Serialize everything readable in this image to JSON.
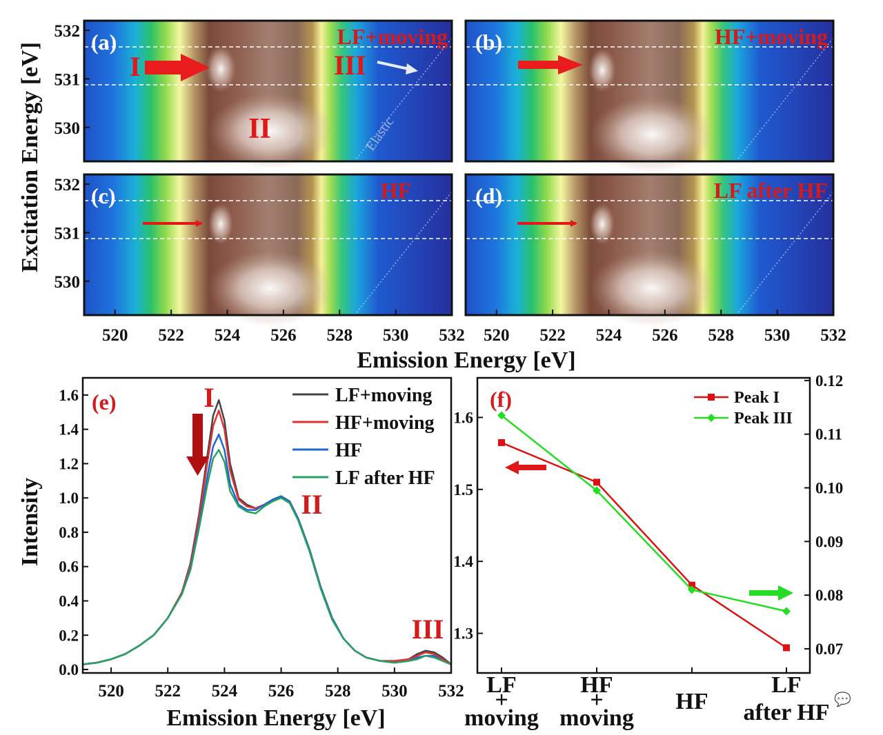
{
  "colors": {
    "series": [
      "#444444",
      "#e03030",
      "#1e66d0",
      "#2aa060"
    ],
    "peak_i": "#dd1111",
    "peak_iii": "#22dd22",
    "label_red": "#d41a1a"
  },
  "maps": {
    "ylabel": "Excitation Energy [eV]",
    "xlabel": "Emission Energy [eV]",
    "x_ticks": [
      "520",
      "522",
      "524",
      "526",
      "528",
      "530",
      "532"
    ],
    "y_ticks": [
      "532",
      "531",
      "530"
    ],
    "xlim": [
      518.9,
      532
    ],
    "ylim": [
      529.3,
      532.2
    ],
    "dashed_lines_eV": [
      531.75,
      530.9
    ],
    "panels": [
      {
        "letter": "(a)",
        "condition": "LF+moving"
      },
      {
        "letter": "(b)",
        "condition": "HF+moving"
      },
      {
        "letter": "(c)",
        "condition": "HF"
      },
      {
        "letter": "(d)",
        "condition": "LF after HF"
      }
    ],
    "feature_labels": {
      "peak_i": "I",
      "peak_ii": "II",
      "peak_iii": "III",
      "elastic": "Elastic"
    }
  },
  "chart_data": [
    {
      "type": "line",
      "panel": "(e)",
      "xlabel": "Emission Energy [eV]",
      "ylabel": "Intensity",
      "xlim": [
        519,
        532
      ],
      "ylim": [
        -0.02,
        1.7
      ],
      "x_ticks": [
        "520",
        "522",
        "524",
        "526",
        "528",
        "530",
        "532"
      ],
      "y_ticks": [
        "0.0",
        "0.2",
        "0.4",
        "0.6",
        "0.8",
        "1.0",
        "1.2",
        "1.4",
        "1.6"
      ],
      "x": [
        519.0,
        519.5,
        520.0,
        520.5,
        521.0,
        521.5,
        522.0,
        522.5,
        522.8,
        523.1,
        523.4,
        523.6,
        523.8,
        524.0,
        524.2,
        524.5,
        524.8,
        525.1,
        525.4,
        525.7,
        526.0,
        526.3,
        526.6,
        527.0,
        527.4,
        527.8,
        528.2,
        528.6,
        529.0,
        529.5,
        530.0,
        530.5,
        530.8,
        531.1,
        531.4,
        531.7,
        532.0
      ],
      "series": [
        {
          "name": "LF+moving",
          "values": [
            0.03,
            0.04,
            0.06,
            0.09,
            0.14,
            0.2,
            0.3,
            0.45,
            0.62,
            0.9,
            1.25,
            1.48,
            1.57,
            1.45,
            1.2,
            1.0,
            0.96,
            0.94,
            0.96,
            0.99,
            1.01,
            0.98,
            0.88,
            0.7,
            0.48,
            0.3,
            0.18,
            0.11,
            0.07,
            0.05,
            0.05,
            0.06,
            0.09,
            0.11,
            0.1,
            0.07,
            0.03
          ]
        },
        {
          "name": "HF+moving",
          "values": [
            0.03,
            0.04,
            0.06,
            0.09,
            0.14,
            0.2,
            0.3,
            0.45,
            0.61,
            0.88,
            1.21,
            1.42,
            1.51,
            1.4,
            1.16,
            0.99,
            0.95,
            0.94,
            0.96,
            0.99,
            1.01,
            0.98,
            0.88,
            0.7,
            0.48,
            0.3,
            0.18,
            0.11,
            0.07,
            0.05,
            0.05,
            0.06,
            0.08,
            0.1,
            0.09,
            0.06,
            0.03
          ]
        },
        {
          "name": "HF",
          "values": [
            0.03,
            0.04,
            0.06,
            0.09,
            0.14,
            0.2,
            0.3,
            0.44,
            0.59,
            0.84,
            1.13,
            1.3,
            1.37,
            1.28,
            1.08,
            0.96,
            0.93,
            0.93,
            0.96,
            0.99,
            1.01,
            0.98,
            0.88,
            0.7,
            0.48,
            0.3,
            0.18,
            0.11,
            0.07,
            0.05,
            0.04,
            0.05,
            0.07,
            0.08,
            0.08,
            0.05,
            0.03
          ]
        },
        {
          "name": "LF after HF",
          "values": [
            0.03,
            0.04,
            0.06,
            0.09,
            0.14,
            0.2,
            0.3,
            0.44,
            0.58,
            0.82,
            1.08,
            1.23,
            1.28,
            1.21,
            1.04,
            0.95,
            0.92,
            0.91,
            0.95,
            0.98,
            1.0,
            0.97,
            0.87,
            0.69,
            0.47,
            0.29,
            0.18,
            0.11,
            0.07,
            0.05,
            0.04,
            0.05,
            0.06,
            0.08,
            0.07,
            0.05,
            0.03
          ]
        }
      ],
      "annotations": {
        "peak_i": "I",
        "peak_ii": "II",
        "peak_iii": "III"
      },
      "legend": "top-right"
    },
    {
      "type": "line",
      "panel": "(f)",
      "categories": [
        "LF + moving",
        "HF + moving",
        "HF",
        "LF after HF"
      ],
      "category_labels": [
        [
          "LF",
          "+",
          "moving"
        ],
        [
          "HF",
          "+",
          "moving"
        ],
        [
          "HF"
        ],
        [
          "LF",
          "after HF"
        ]
      ],
      "y_left": {
        "lim": [
          1.245,
          1.655
        ],
        "ticks": [
          "1.3",
          "1.4",
          "1.5",
          "1.6"
        ]
      },
      "y_right": {
        "lim": [
          0.0655,
          0.1205
        ],
        "ticks": [
          "0.07",
          "0.08",
          "0.09",
          "0.10",
          "0.11",
          "0.12"
        ]
      },
      "series": [
        {
          "name": "Peak I",
          "axis": "left",
          "values": [
            1.565,
            1.51,
            1.367,
            1.28
          ]
        },
        {
          "name": "Peak III",
          "axis": "right",
          "values": [
            0.1135,
            0.0995,
            0.081,
            0.077
          ]
        }
      ],
      "legend": "top-right"
    }
  ]
}
